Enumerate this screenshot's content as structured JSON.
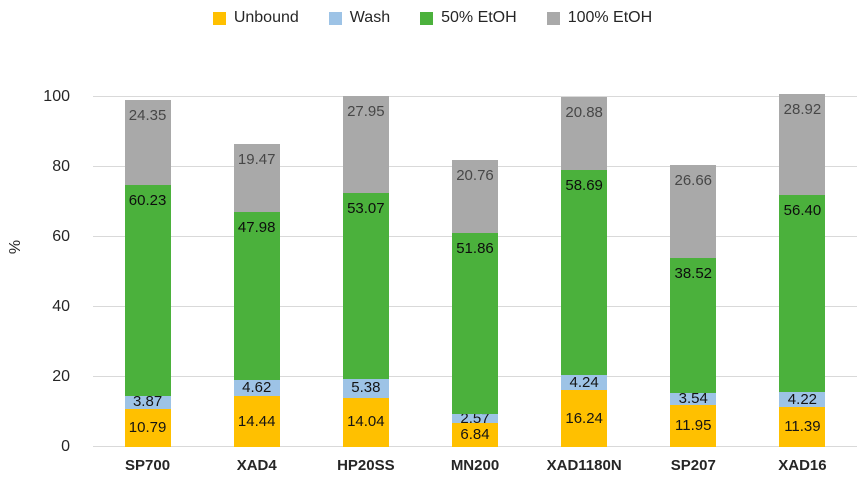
{
  "colors": {
    "background": "#ffffff",
    "gridline": "#d9d9d9",
    "axis_text": "#262626"
  },
  "chart_data": {
    "type": "bar",
    "stacked": true,
    "title": "",
    "xlabel": "",
    "ylabel": "%",
    "ylim": [
      0,
      100
    ],
    "yticks": [
      0,
      20,
      40,
      60,
      80,
      100
    ],
    "grid": true,
    "legend_position": "top",
    "value_decimals": 2,
    "categories": [
      "SP700",
      "XAD4",
      "HP20SS",
      "MN200",
      "XAD1180N",
      "SP207",
      "XAD16"
    ],
    "series": [
      {
        "name": "Unbound",
        "color": "#FFC000",
        "label_color": "#141414",
        "label_pos": "center",
        "values": [
          10.79,
          14.44,
          14.04,
          6.84,
          16.24,
          11.95,
          11.39
        ]
      },
      {
        "name": "Wash",
        "color": "#9DC3E6",
        "label_color": "#141414",
        "label_pos": "center",
        "values": [
          3.87,
          4.62,
          5.38,
          2.57,
          4.24,
          3.54,
          4.22
        ]
      },
      {
        "name": "50% EtOH",
        "color": "#4BB13C",
        "label_color": "#0d0d0d",
        "label_pos": "top",
        "values": [
          60.23,
          47.98,
          53.07,
          51.86,
          58.69,
          38.52,
          56.4
        ]
      },
      {
        "name": "100% EtOH",
        "color": "#A9A9A9",
        "label_color": "#474747",
        "label_pos": "top",
        "values": [
          24.35,
          19.47,
          27.95,
          20.76,
          20.88,
          26.66,
          28.92
        ]
      }
    ]
  }
}
